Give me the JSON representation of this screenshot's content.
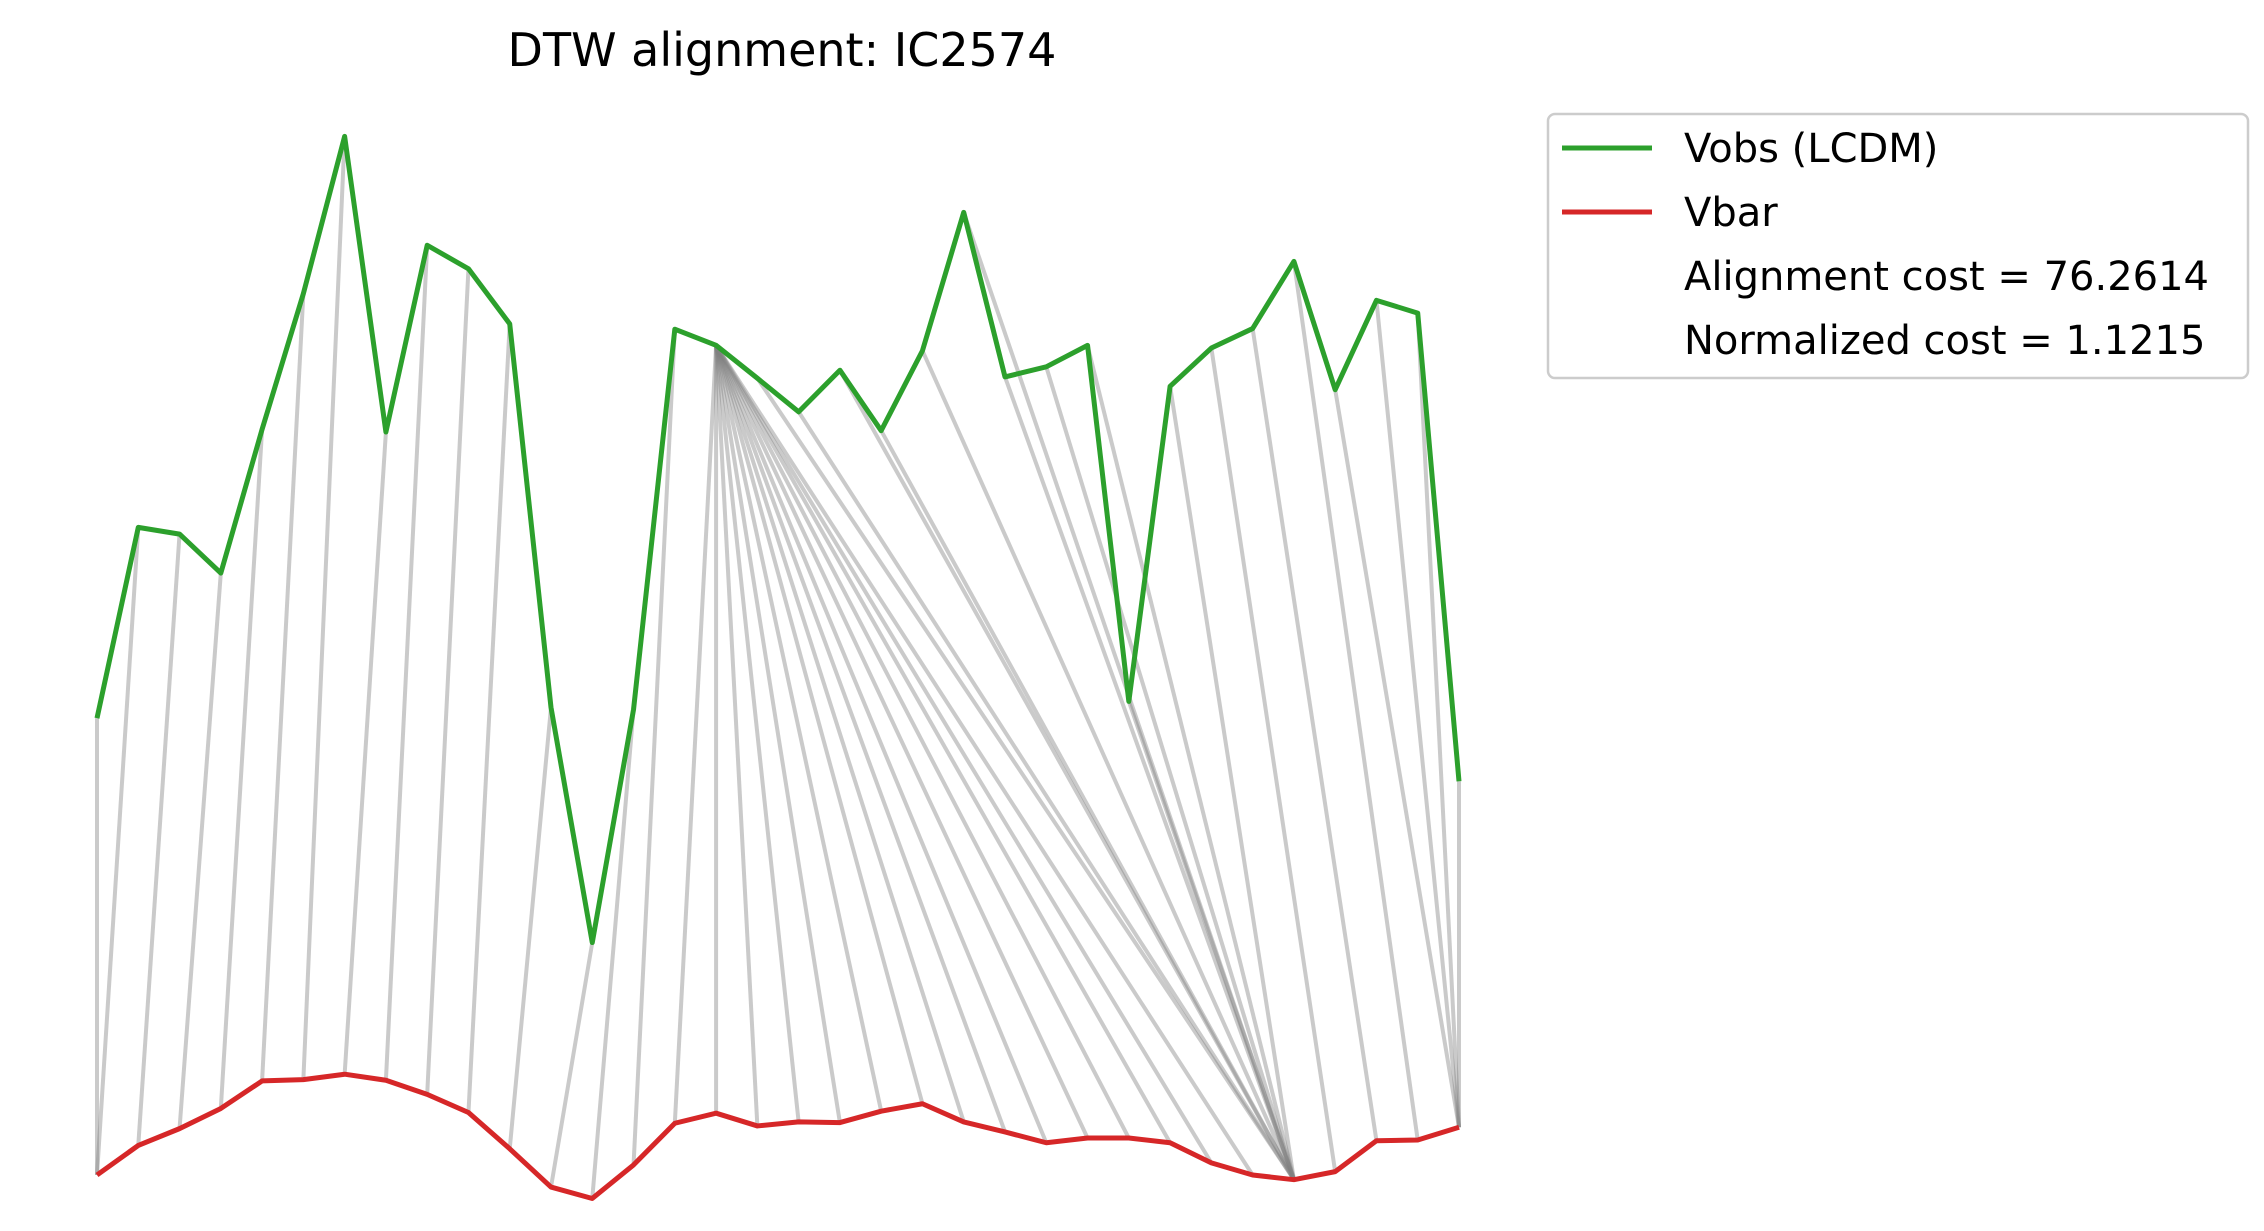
{
  "chart_data": {
    "type": "line",
    "title": "DTW alignment: IC2574",
    "xlabel": "",
    "ylabel": "",
    "axes_visible": false,
    "grid": false,
    "legend_placement": "outside-top-right",
    "series": [
      {
        "name": "Vobs (LCDM)",
        "color": "#2ca02c",
        "values": [
          0.7,
          0.984,
          0.974,
          0.916,
          1.13,
          1.332,
          1.566,
          1.126,
          1.404,
          1.369,
          1.287,
          0.716,
          0.366,
          0.713,
          1.279,
          1.255,
          1.206,
          1.156,
          1.218,
          1.128,
          1.247,
          1.453,
          1.208,
          1.223,
          1.255,
          0.725,
          1.194,
          1.251,
          1.28,
          1.38,
          1.189,
          1.322,
          1.303,
          0.606
        ]
      },
      {
        "name": "Vbar",
        "color": "#d62728",
        "values": [
          0.02,
          0.064,
          0.089,
          0.119,
          0.16,
          0.162,
          0.17,
          0.161,
          0.14,
          0.113,
          0.059,
          0.002,
          -0.015,
          0.035,
          0.097,
          0.112,
          0.093,
          0.099,
          0.098,
          0.115,
          0.126,
          0.099,
          0.084,
          0.068,
          0.075,
          0.075,
          0.068,
          0.038,
          0.02,
          0.013,
          0.025,
          0.071,
          0.072,
          0.091
        ]
      }
    ],
    "alignment_pairs": [
      [
        0,
        0
      ],
      [
        1,
        0
      ],
      [
        2,
        1
      ],
      [
        3,
        2
      ],
      [
        4,
        3
      ],
      [
        5,
        4
      ],
      [
        6,
        5
      ],
      [
        7,
        6
      ],
      [
        8,
        7
      ],
      [
        9,
        8
      ],
      [
        10,
        9
      ],
      [
        11,
        10
      ],
      [
        12,
        11
      ],
      [
        13,
        12
      ],
      [
        14,
        13
      ],
      [
        15,
        14
      ],
      [
        15,
        15
      ],
      [
        15,
        16
      ],
      [
        15,
        17
      ],
      [
        15,
        18
      ],
      [
        15,
        19
      ],
      [
        15,
        20
      ],
      [
        15,
        21
      ],
      [
        15,
        22
      ],
      [
        15,
        23
      ],
      [
        15,
        24
      ],
      [
        15,
        25
      ],
      [
        15,
        26
      ],
      [
        15,
        27
      ],
      [
        15,
        28
      ],
      [
        16,
        29
      ],
      [
        17,
        29
      ],
      [
        18,
        29
      ],
      [
        19,
        29
      ],
      [
        20,
        29
      ],
      [
        21,
        29
      ],
      [
        22,
        29
      ],
      [
        23,
        29
      ],
      [
        24,
        29
      ],
      [
        25,
        29
      ],
      [
        26,
        29
      ],
      [
        27,
        30
      ],
      [
        28,
        31
      ],
      [
        29,
        32
      ],
      [
        30,
        33
      ],
      [
        31,
        33
      ],
      [
        32,
        33
      ],
      [
        33,
        33
      ]
    ],
    "ylim": [
      -0.05,
      1.65
    ],
    "annotations": [
      "Alignment cost = 76.2614",
      "Normalized cost = 1.1215"
    ]
  },
  "legend": {
    "items": [
      {
        "label": "Vobs (LCDM)",
        "color": "#2ca02c",
        "kind": "line"
      },
      {
        "label": "Vbar",
        "color": "#d62728",
        "kind": "line"
      },
      {
        "label": "Alignment cost = 76.2614",
        "kind": "text"
      },
      {
        "label": "Normalized cost = 1.1215",
        "kind": "text"
      }
    ]
  }
}
